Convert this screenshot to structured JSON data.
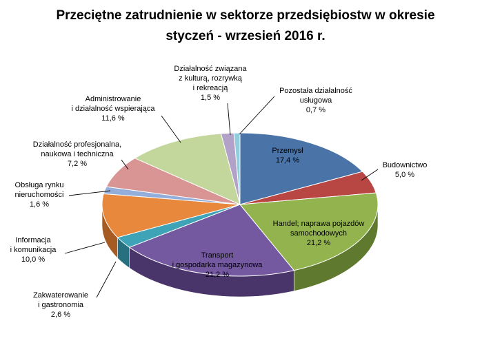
{
  "chart_data": {
    "type": "pie",
    "title_lines": [
      "Przeciętne zatrudnienie w sektorze przedsiębiostw w okresie",
      "styczeń - wrzesień 2016 r."
    ],
    "slices": [
      {
        "key": "przemysl",
        "label_lines": [
          "Przemysł"
        ],
        "value_label": "17,4 %",
        "value": 17.4,
        "color": "#4A73A8",
        "side": "#2F4F7A"
      },
      {
        "key": "budownictwo",
        "label_lines": [
          "Budownictwo"
        ],
        "value_label": "5,0 %",
        "value": 5.0,
        "color": "#B84744",
        "side": "#7E2E2C"
      },
      {
        "key": "handel",
        "label_lines": [
          "Handel; naprawa pojazdów",
          "samochodowych"
        ],
        "value_label": "21,2 %",
        "value": 21.2,
        "color": "#93B34F",
        "side": "#5F7A2E"
      },
      {
        "key": "transport",
        "label_lines": [
          "Transport",
          "i gospodarka magazynowa"
        ],
        "value_label": "21,2 %",
        "value": 21.2,
        "color": "#7458A0",
        "side": "#4A356B"
      },
      {
        "key": "zakwaterowanie",
        "label_lines": [
          "Zakwaterowanie",
          "i gastronomia"
        ],
        "value_label": "2,6  %",
        "value": 2.6,
        "color": "#3FA3B8",
        "side": "#27707F"
      },
      {
        "key": "informacja",
        "label_lines": [
          "Informacja",
          "i komunikacja"
        ],
        "value_label": "10,0 %",
        "value": 10.0,
        "color": "#E8883C",
        "side": "#A65B22"
      },
      {
        "key": "nieruchomosci",
        "label_lines": [
          "Obsługa rynku",
          "nieruchomości"
        ],
        "value_label": "1,6 %",
        "value": 1.6,
        "color": "#93AEDA",
        "side": "#6A82AC"
      },
      {
        "key": "profesjonalna",
        "label_lines": [
          "Działalność profesjonalna,",
          "naukowa i techniczna"
        ],
        "value_label": "7,2 %",
        "value": 7.2,
        "color": "#D99594",
        "side": "#A86C6B"
      },
      {
        "key": "administrowanie",
        "label_lines": [
          "Administrowanie",
          "i działalność wspierająca"
        ],
        "value_label": "11,6 %",
        "value": 11.6,
        "color": "#C3D69B",
        "side": "#92A46C"
      },
      {
        "key": "kultura",
        "label_lines": [
          "Działalność związana",
          "z kulturą, rozrywką",
          "i rekreacją"
        ],
        "value_label": "1,5 %",
        "value": 1.5,
        "color": "#B2A2C7",
        "side": "#7E6F95"
      },
      {
        "key": "pozostala",
        "label_lines": [
          "Pozostała działalność",
          "usługowa"
        ],
        "value_label": "0,7 %",
        "value": 0.7,
        "color": "#92CDDC",
        "side": "#5F98A8"
      }
    ]
  }
}
